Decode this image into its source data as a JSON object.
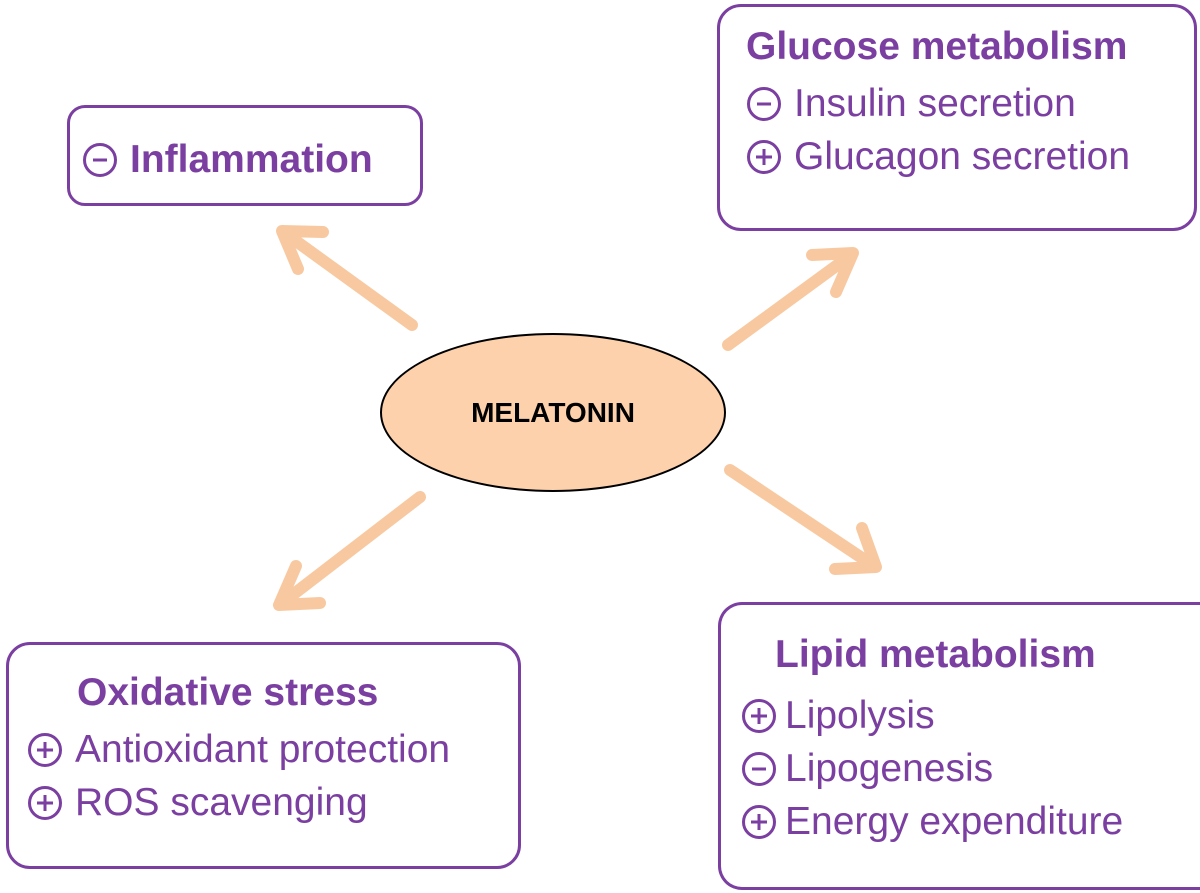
{
  "colors": {
    "accent": "#7a3fa0",
    "arrow": "#f8c9a0",
    "center_fill": "#fcd1ac"
  },
  "center": {
    "label": "MELATONIN"
  },
  "inflammation": {
    "sign": "minus",
    "label": "Inflammation"
  },
  "glucose": {
    "title": "Glucose metabolism",
    "items": [
      {
        "sign": "minus",
        "label": "Insulin secretion"
      },
      {
        "sign": "plus",
        "label": "Glucagon secretion"
      }
    ]
  },
  "oxidative": {
    "title": "Oxidative stress",
    "items": [
      {
        "sign": "plus",
        "label": "Antioxidant protection"
      },
      {
        "sign": "plus",
        "label": "ROS scavenging"
      }
    ]
  },
  "lipid": {
    "title": "Lipid metabolism",
    "items": [
      {
        "sign": "plus",
        "label": "Lipolysis"
      },
      {
        "sign": "minus",
        "label": "Lipogenesis"
      },
      {
        "sign": "plus",
        "label": "Energy expenditure"
      }
    ]
  }
}
